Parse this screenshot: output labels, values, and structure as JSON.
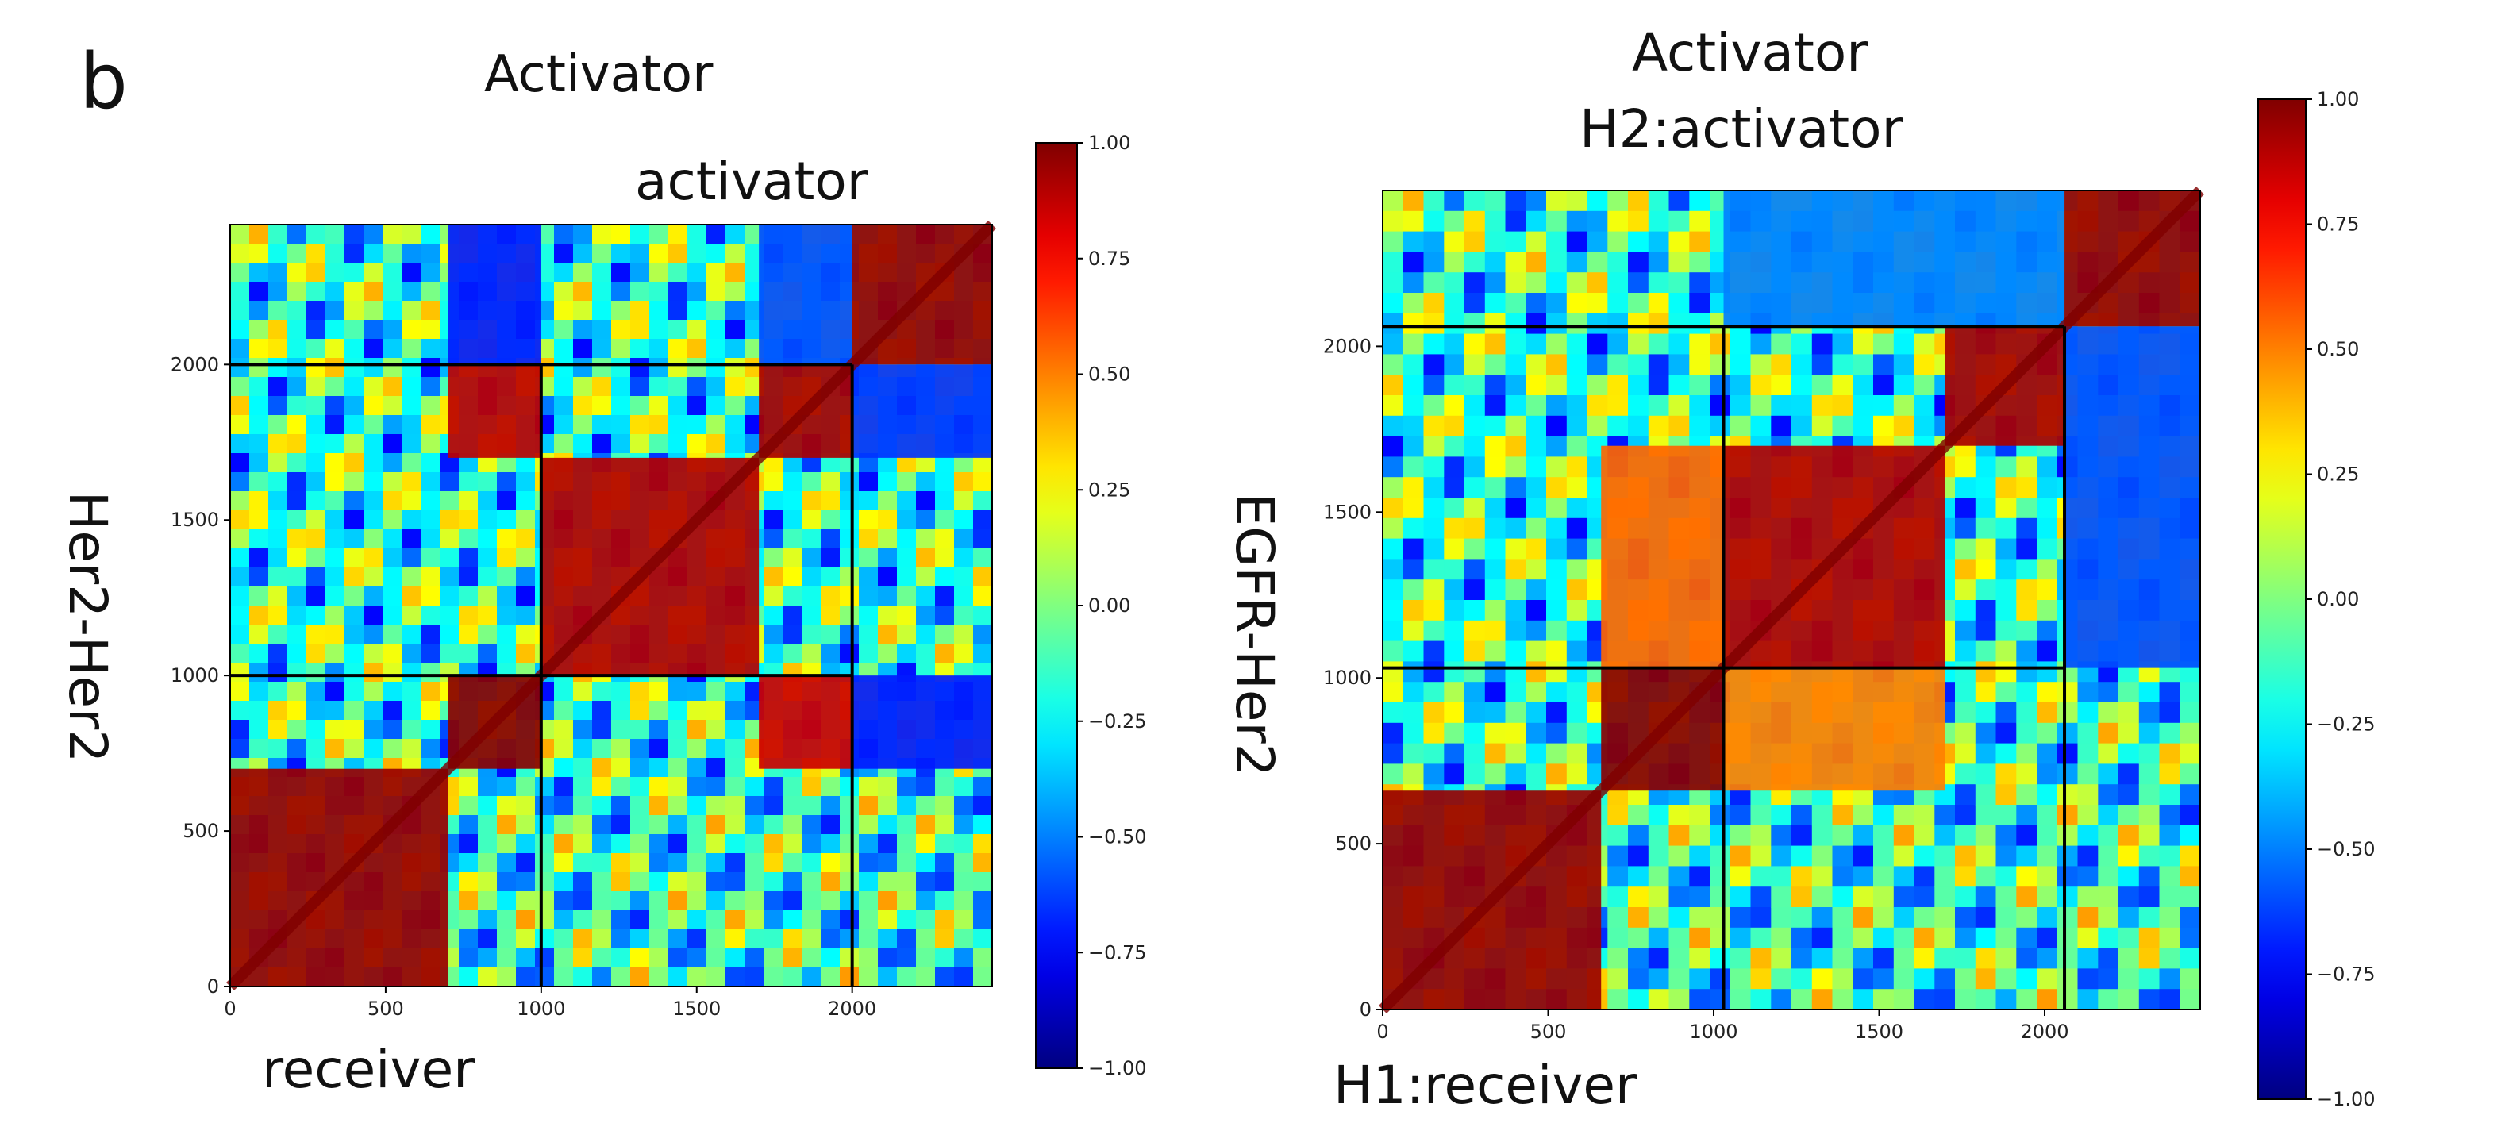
{
  "panel_label": "b",
  "chart_data": [
    {
      "type": "heatmap",
      "title": "Activator",
      "region_label": "activator",
      "xlabel": "receiver",
      "ylabel": "Her2-Her2",
      "x_range": [
        0,
        2450
      ],
      "y_range": [
        0,
        2450
      ],
      "xticks": [
        0,
        500,
        1000,
        1500,
        2000
      ],
      "yticks": [
        0,
        500,
        1000,
        1500,
        2000
      ],
      "divider_lines": [
        1000,
        2000
      ],
      "colorbar": {
        "range": [
          -1.0,
          1.0
        ],
        "ticks": [
          "1.00",
          "0.75",
          "0.50",
          "0.25",
          "0.00",
          "−0.25",
          "−0.50",
          "−0.75",
          "−1.00"
        ],
        "colormap": "jet"
      },
      "blocks": [
        {
          "x": [
            0,
            700
          ],
          "y": [
            0,
            700
          ],
          "value": 0.95
        },
        {
          "x": [
            700,
            1000
          ],
          "y": [
            700,
            1000
          ],
          "value": 0.98
        },
        {
          "x": [
            1000,
            1700
          ],
          "y": [
            1000,
            1700
          ],
          "value": 0.9
        },
        {
          "x": [
            1700,
            2000
          ],
          "y": [
            1700,
            2000
          ],
          "value": 0.92
        },
        {
          "x": [
            2000,
            2450
          ],
          "y": [
            2000,
            2450
          ],
          "value": 0.95
        },
        {
          "x": [
            700,
            1000
          ],
          "y": [
            1700,
            2000
          ],
          "value": 0.88
        },
        {
          "x": [
            1700,
            2000
          ],
          "y": [
            700,
            1000
          ],
          "value": 0.85
        },
        {
          "x": [
            2000,
            2450
          ],
          "y": [
            700,
            1000
          ],
          "value": -0.7
        },
        {
          "x": [
            2000,
            2450
          ],
          "y": [
            1700,
            2000
          ],
          "value": -0.65
        },
        {
          "x": [
            700,
            1000
          ],
          "y": [
            2000,
            2450
          ],
          "value": -0.7
        },
        {
          "x": [
            1700,
            2000
          ],
          "y": [
            2000,
            2450
          ],
          "value": -0.6
        }
      ]
    },
    {
      "type": "heatmap",
      "title": "Activator",
      "subtitle": "H2:activator",
      "xlabel": "H1:receiver",
      "ylabel": "EGFR-Her2",
      "x_range": [
        0,
        2470
      ],
      "y_range": [
        0,
        2470
      ],
      "xticks": [
        0,
        500,
        1000,
        1500,
        2000
      ],
      "yticks": [
        0,
        500,
        1000,
        1500,
        2000
      ],
      "divider_lines": [
        1030,
        2060
      ],
      "colorbar": {
        "range": [
          -1.0,
          1.0
        ],
        "ticks": [
          "1.00",
          "0.75",
          "0.50",
          "0.25",
          "0.00",
          "−0.25",
          "−0.50",
          "−0.75",
          "−1.00"
        ],
        "colormap": "jet"
      },
      "blocks": [
        {
          "x": [
            0,
            660
          ],
          "y": [
            0,
            660
          ],
          "value": 0.95
        },
        {
          "x": [
            660,
            1030
          ],
          "y": [
            660,
            1030
          ],
          "value": 0.98
        },
        {
          "x": [
            1030,
            1700
          ],
          "y": [
            1030,
            1700
          ],
          "value": 0.9
        },
        {
          "x": [
            1700,
            2060
          ],
          "y": [
            1700,
            2060
          ],
          "value": 0.92
        },
        {
          "x": [
            2060,
            2470
          ],
          "y": [
            2060,
            2470
          ],
          "value": 0.95
        },
        {
          "x": [
            660,
            1030
          ],
          "y": [
            1030,
            1700
          ],
          "value": 0.55
        },
        {
          "x": [
            1030,
            1700
          ],
          "y": [
            660,
            1030
          ],
          "value": 0.5
        },
        {
          "x": [
            2060,
            2470
          ],
          "y": [
            1030,
            2060
          ],
          "value": -0.6
        },
        {
          "x": [
            1030,
            2060
          ],
          "y": [
            2060,
            2470
          ],
          "value": -0.5
        }
      ]
    }
  ]
}
